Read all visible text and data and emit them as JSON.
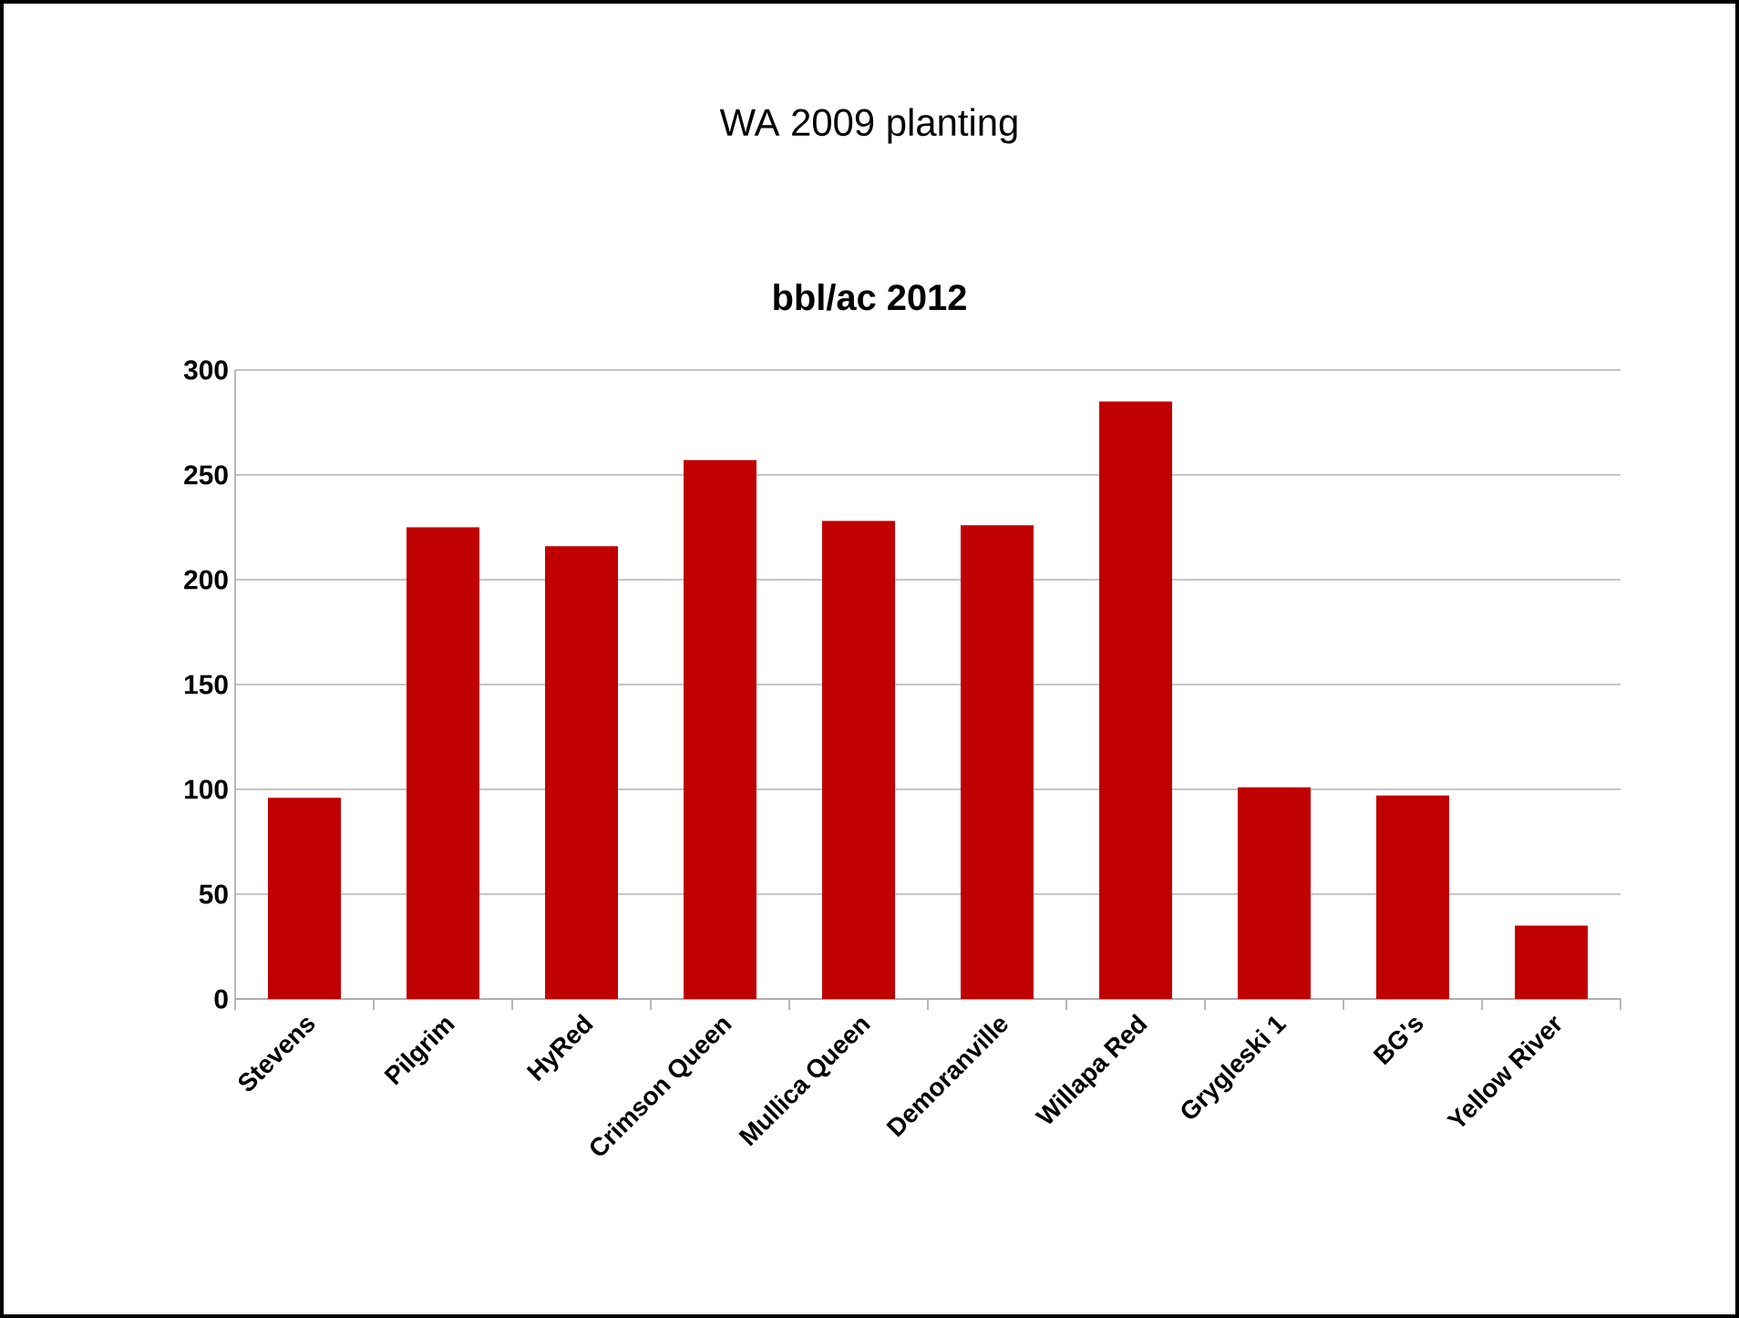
{
  "chart_data": {
    "type": "bar",
    "title": "WA 2009 planting",
    "subtitle": "bbl/ac 2012",
    "categories": [
      "Stevens",
      "Pilgrim",
      "HyRed",
      "Crimson Queen",
      "Mullica Queen",
      "Demoranville",
      "Willapa Red",
      "Grygleski 1",
      "BG's",
      "Yellow River"
    ],
    "values": [
      96,
      225,
      216,
      257,
      228,
      226,
      285,
      101,
      97,
      35
    ],
    "color": "#c00000",
    "ylim": [
      0,
      300
    ],
    "yticks": [
      0,
      50,
      100,
      150,
      200,
      250,
      300
    ],
    "grid": "y"
  }
}
